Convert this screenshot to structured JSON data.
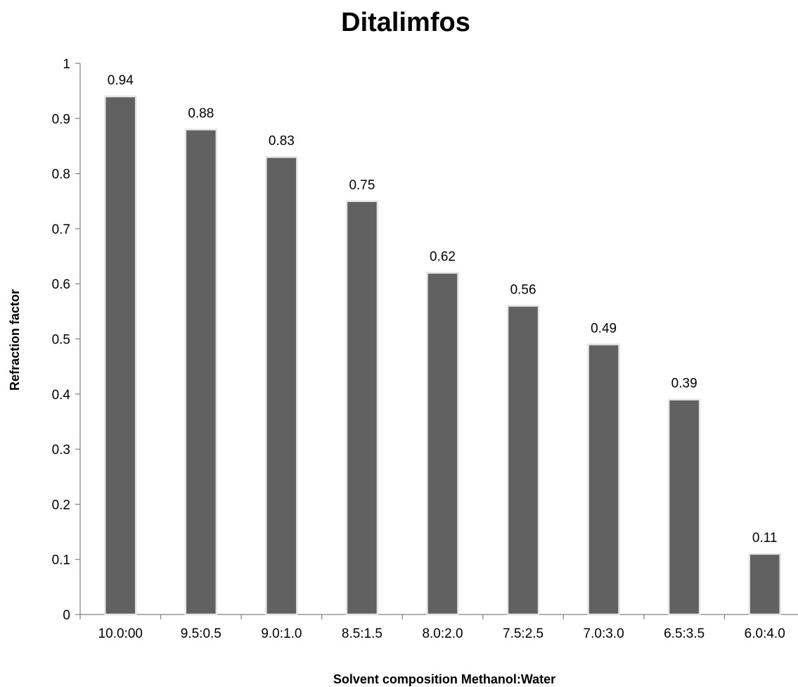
{
  "chart_data": {
    "type": "bar",
    "title": "Ditalimfos",
    "xlabel": "Solvent composition Methanol:Water",
    "ylabel": "Refraction factor",
    "categories": [
      "10.0:00",
      "9.5:0.5",
      "9.0:1.0",
      "8.5:1.5",
      "8.0:2.0",
      "7.5:2.5",
      "7.0:3.0",
      "6.5:3.5",
      "6.0:4.0"
    ],
    "values": [
      0.94,
      0.88,
      0.83,
      0.75,
      0.62,
      0.56,
      0.49,
      0.39,
      0.11
    ],
    "data_labels": [
      "0.94",
      "0.88",
      "0.83",
      "0.75",
      "0.62",
      "0.56",
      "0.49",
      "0.39",
      "0.11"
    ],
    "ylim": [
      0,
      1
    ],
    "yticks": [
      0,
      0.1,
      0.2,
      0.3,
      0.4,
      0.5,
      0.6,
      0.7,
      0.8,
      0.9,
      1
    ],
    "ytick_labels": [
      "0",
      "0.1",
      "0.2",
      "0.3",
      "0.4",
      "0.5",
      "0.6",
      "0.7",
      "0.8",
      "0.9",
      "1"
    ],
    "grid": false,
    "legend": "none",
    "bar_color": "#616161"
  }
}
